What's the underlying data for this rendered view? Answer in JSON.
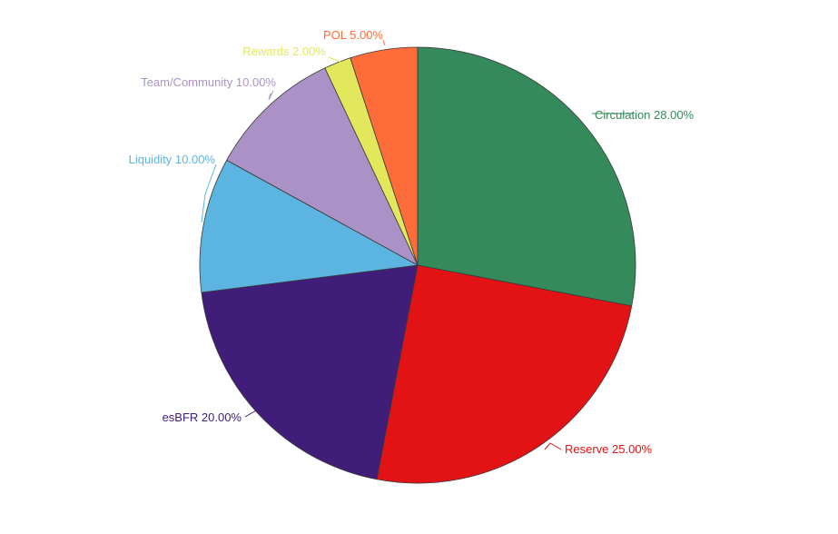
{
  "chart_data": {
    "type": "pie",
    "title": "",
    "slices": [
      {
        "label": "Circulation",
        "value": 28.0,
        "display": "Circulation 28.00%",
        "color": "#348a5a"
      },
      {
        "label": "Reserve",
        "value": 25.0,
        "display": "Reserve 25.00%",
        "color": "#e31315"
      },
      {
        "label": "esBFR",
        "value": 20.0,
        "display": "esBFR 20.00%",
        "color": "#3f1d78"
      },
      {
        "label": "Liquidity",
        "value": 10.0,
        "display": "Liquidity 10.00%",
        "color": "#5cb5e1"
      },
      {
        "label": "Team/Community",
        "value": 10.0,
        "display": "Team/Community 10.00%",
        "color": "#aa92c7"
      },
      {
        "label": "Rewards",
        "value": 2.0,
        "display": "Rewards 2.00%",
        "color": "#e3e75b"
      },
      {
        "label": "POL",
        "value": 5.0,
        "display": "POL 5.00%",
        "color": "#fe6c39"
      }
    ],
    "start": "top",
    "direction": "clockwise",
    "legend": "none"
  }
}
